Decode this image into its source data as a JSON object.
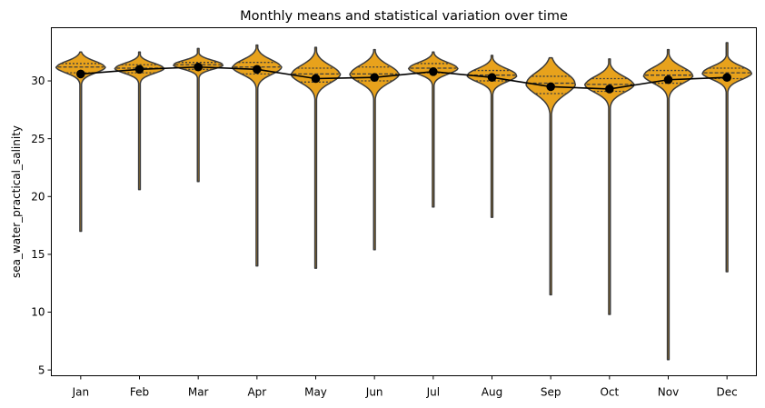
{
  "chart_data": {
    "type": "violin",
    "title": "Monthly means and statistical variation over time",
    "xlabel": "",
    "ylabel": "sea_water_practical_salinity",
    "ylim": [
      4.5,
      34.6
    ],
    "yticks": [
      5,
      10,
      15,
      20,
      25,
      30
    ],
    "categories": [
      "Jan",
      "Feb",
      "Mar",
      "Apr",
      "May",
      "Jun",
      "Jul",
      "Aug",
      "Sep",
      "Oct",
      "Nov",
      "Dec"
    ],
    "mean": [
      30.6,
      31.0,
      31.2,
      31.0,
      30.2,
      30.3,
      30.8,
      30.3,
      29.5,
      29.3,
      30.1,
      30.3
    ],
    "min": [
      17.0,
      20.6,
      21.3,
      14.0,
      13.8,
      15.4,
      19.1,
      18.2,
      11.5,
      9.8,
      5.9,
      13.5
    ],
    "max": [
      32.5,
      32.5,
      32.8,
      33.1,
      32.9,
      32.7,
      32.5,
      32.2,
      32.0,
      31.9,
      32.7,
      33.3
    ],
    "q1": [
      30.7,
      30.7,
      31.0,
      30.6,
      29.9,
      30.0,
      30.7,
      30.0,
      28.9,
      29.1,
      29.8,
      30.2
    ],
    "median": [
      31.2,
      31.1,
      31.4,
      31.2,
      30.6,
      30.6,
      31.1,
      30.5,
      29.8,
      29.7,
      30.5,
      30.7
    ],
    "q3": [
      31.5,
      31.4,
      31.6,
      31.6,
      31.1,
      31.2,
      31.5,
      30.9,
      30.4,
      30.2,
      30.9,
      31.1
    ],
    "violin_color": "#e8a21c",
    "outline_color": "#3c3c3c",
    "mean_line_color": "#000000",
    "grid": false
  }
}
